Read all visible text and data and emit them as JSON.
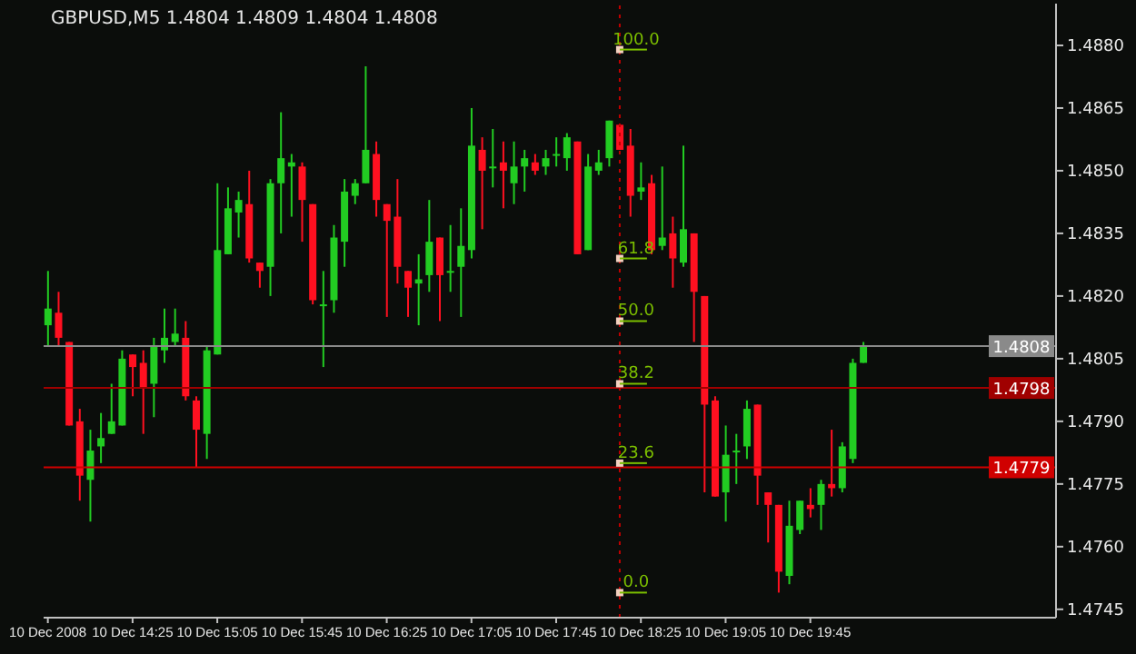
{
  "chart_data": {
    "type": "candlestick",
    "title": "GBPUSD,M5 1.4804 1.4809 1.4804 1.4808",
    "x": [
      "2008-12-10T13:45",
      "2008-12-10T13:50",
      "2008-12-10T13:55",
      "2008-12-10T14:00",
      "2008-12-10T14:05",
      "2008-12-10T14:10",
      "2008-12-10T14:15",
      "2008-12-10T14:20",
      "2008-12-10T14:25",
      "2008-12-10T14:30",
      "2008-12-10T14:35",
      "2008-12-10T14:40",
      "2008-12-10T14:45",
      "2008-12-10T14:50",
      "2008-12-10T14:55",
      "2008-12-10T15:00",
      "2008-12-10T15:05",
      "2008-12-10T15:10",
      "2008-12-10T15:15",
      "2008-12-10T15:20",
      "2008-12-10T15:25",
      "2008-12-10T15:30",
      "2008-12-10T15:35",
      "2008-12-10T15:40",
      "2008-12-10T15:45",
      "2008-12-10T15:50",
      "2008-12-10T15:55",
      "2008-12-10T16:00",
      "2008-12-10T16:05",
      "2008-12-10T16:10",
      "2008-12-10T16:15",
      "2008-12-10T16:20",
      "2008-12-10T16:25",
      "2008-12-10T16:30",
      "2008-12-10T16:35",
      "2008-12-10T16:40",
      "2008-12-10T16:45",
      "2008-12-10T16:50",
      "2008-12-10T16:55",
      "2008-12-10T17:00",
      "2008-12-10T17:05",
      "2008-12-10T17:10",
      "2008-12-10T17:15",
      "2008-12-10T17:20",
      "2008-12-10T17:25",
      "2008-12-10T17:30",
      "2008-12-10T17:35",
      "2008-12-10T17:40",
      "2008-12-10T17:45",
      "2008-12-10T17:50",
      "2008-12-10T17:55",
      "2008-12-10T18:00",
      "2008-12-10T18:05",
      "2008-12-10T18:10",
      "2008-12-10T18:15",
      "2008-12-10T18:20",
      "2008-12-10T18:25",
      "2008-12-10T18:30",
      "2008-12-10T18:35",
      "2008-12-10T18:40",
      "2008-12-10T18:45",
      "2008-12-10T18:50",
      "2008-12-10T18:55",
      "2008-12-10T19:00",
      "2008-12-10T19:05",
      "2008-12-10T19:10",
      "2008-12-10T19:15",
      "2008-12-10T19:20",
      "2008-12-10T19:25",
      "2008-12-10T19:30",
      "2008-12-10T19:35",
      "2008-12-10T19:40",
      "2008-12-10T19:45",
      "2008-12-10T19:50",
      "2008-12-10T19:55",
      "2008-12-10T20:00",
      "2008-12-10T20:05",
      "2008-12-10T20:10"
    ],
    "xlim": [
      "2008-12-10T13:43",
      "2008-12-10T21:41"
    ],
    "xticks": [
      {
        "value": "2008-12-10T13:45",
        "label": "10 Dec 2008"
      },
      {
        "value": "2008-12-10T14:25",
        "label": "10 Dec 14:25"
      },
      {
        "value": "2008-12-10T15:05",
        "label": "10 Dec 15:05"
      },
      {
        "value": "2008-12-10T15:45",
        "label": "10 Dec 15:45"
      },
      {
        "value": "2008-12-10T16:25",
        "label": "10 Dec 16:25"
      },
      {
        "value": "2008-12-10T17:05",
        "label": "10 Dec 17:05"
      },
      {
        "value": "2008-12-10T17:45",
        "label": "10 Dec 17:45"
      },
      {
        "value": "2008-12-10T18:25",
        "label": "10 Dec 18:25"
      },
      {
        "value": "2008-12-10T19:05",
        "label": "10 Dec 19:05"
      },
      {
        "value": "2008-12-10T19:45",
        "label": "10 Dec 19:45"
      }
    ],
    "ohlc": [
      [
        1.4813,
        1.4826,
        1.4808,
        1.4817
      ],
      [
        1.4816,
        1.4821,
        1.4808,
        1.481
      ],
      [
        1.4809,
        1.4809,
        1.4789,
        1.4789
      ],
      [
        1.479,
        1.4793,
        1.4771,
        1.4777
      ],
      [
        1.4776,
        1.4788,
        1.4766,
        1.4783
      ],
      [
        1.4784,
        1.4792,
        1.478,
        1.4786
      ],
      [
        1.4787,
        1.4799,
        1.4787,
        1.479
      ],
      [
        1.4789,
        1.4807,
        1.4789,
        1.4805
      ],
      [
        1.4806,
        1.4806,
        1.4796,
        1.4803
      ],
      [
        1.4804,
        1.4807,
        1.4787,
        1.4798
      ],
      [
        1.4799,
        1.481,
        1.4791,
        1.4808
      ],
      [
        1.4807,
        1.4817,
        1.4804,
        1.481
      ],
      [
        1.4809,
        1.4817,
        1.4808,
        1.4811
      ],
      [
        1.481,
        1.4814,
        1.4795,
        1.4796
      ],
      [
        1.4795,
        1.4796,
        1.4779,
        1.4788
      ],
      [
        1.4787,
        1.4808,
        1.4781,
        1.4807
      ],
      [
        1.4806,
        1.4847,
        1.4806,
        1.4831
      ],
      [
        1.483,
        1.4846,
        1.483,
        1.4841
      ],
      [
        1.484,
        1.4845,
        1.4834,
        1.4843
      ],
      [
        1.4842,
        1.485,
        1.4828,
        1.4829
      ],
      [
        1.4828,
        1.4828,
        1.4822,
        1.4826
      ],
      [
        1.4827,
        1.4848,
        1.482,
        1.4847
      ],
      [
        1.4847,
        1.4864,
        1.4835,
        1.4853
      ],
      [
        1.4851,
        1.4854,
        1.4839,
        1.4852
      ],
      [
        1.4851,
        1.4852,
        1.4833,
        1.4843
      ],
      [
        1.4842,
        1.4842,
        1.4818,
        1.4819
      ],
      [
        1.4818,
        1.4826,
        1.4803,
        1.4818
      ],
      [
        1.4819,
        1.4837,
        1.4816,
        1.4834
      ],
      [
        1.4833,
        1.4848,
        1.4827,
        1.4845
      ],
      [
        1.4844,
        1.4848,
        1.4842,
        1.4847
      ],
      [
        1.4847,
        1.4875,
        1.4847,
        1.4855
      ],
      [
        1.4854,
        1.4857,
        1.4839,
        1.4843
      ],
      [
        1.4842,
        1.4842,
        1.4815,
        1.4838
      ],
      [
        1.4839,
        1.4848,
        1.4823,
        1.4827
      ],
      [
        1.4826,
        1.4826,
        1.4815,
        1.4822
      ],
      [
        1.4823,
        1.483,
        1.4813,
        1.4824
      ],
      [
        1.4825,
        1.4843,
        1.4821,
        1.4833
      ],
      [
        1.4834,
        1.4834,
        1.4814,
        1.4825
      ],
      [
        1.4826,
        1.4837,
        1.4821,
        1.4826
      ],
      [
        1.4827,
        1.4841,
        1.4815,
        1.4832
      ],
      [
        1.4831,
        1.4865,
        1.4829,
        1.4856
      ],
      [
        1.4855,
        1.4858,
        1.4836,
        1.485
      ],
      [
        1.4851,
        1.486,
        1.4846,
        1.4851
      ],
      [
        1.4852,
        1.4857,
        1.4841,
        1.485
      ],
      [
        1.4847,
        1.4857,
        1.4842,
        1.4851
      ],
      [
        1.4851,
        1.4855,
        1.4845,
        1.4853
      ],
      [
        1.4852,
        1.4854,
        1.4849,
        1.485
      ],
      [
        1.4851,
        1.4855,
        1.4849,
        1.4853
      ],
      [
        1.4854,
        1.4858,
        1.4851,
        1.4854
      ],
      [
        1.4853,
        1.4859,
        1.485,
        1.4858
      ],
      [
        1.4857,
        1.4857,
        1.483,
        1.483
      ],
      [
        1.4831,
        1.4854,
        1.4831,
        1.4851
      ],
      [
        1.485,
        1.4855,
        1.4849,
        1.4852
      ],
      [
        1.4853,
        1.4862,
        1.4851,
        1.4862
      ],
      [
        1.4861,
        1.4861,
        1.4855,
        1.4855
      ],
      [
        1.4856,
        1.486,
        1.4839,
        1.4844
      ],
      [
        1.4845,
        1.4852,
        1.4843,
        1.4846
      ],
      [
        1.4847,
        1.4849,
        1.483,
        1.4831
      ],
      [
        1.4832,
        1.4851,
        1.4831,
        1.4834
      ],
      [
        1.4835,
        1.4839,
        1.4822,
        1.4829
      ],
      [
        1.4828,
        1.4856,
        1.4827,
        1.4836
      ],
      [
        1.4835,
        1.4835,
        1.4809,
        1.4821
      ],
      [
        1.482,
        1.482,
        1.4773,
        1.4794
      ],
      [
        1.4795,
        1.4796,
        1.4772,
        1.4772
      ],
      [
        1.4773,
        1.4789,
        1.4766,
        1.4782
      ],
      [
        1.4783,
        1.4787,
        1.4775,
        1.4783
      ],
      [
        1.4784,
        1.4795,
        1.4781,
        1.4793
      ],
      [
        1.4794,
        1.4794,
        1.477,
        1.4777
      ],
      [
        1.4773,
        1.4773,
        1.4761,
        1.477
      ],
      [
        1.477,
        1.477,
        1.4749,
        1.4754
      ],
      [
        1.4753,
        1.4771,
        1.4751,
        1.4765
      ],
      [
        1.4764,
        1.4771,
        1.4763,
        1.4771
      ],
      [
        1.477,
        1.4774,
        1.4767,
        1.4769
      ],
      [
        1.477,
        1.4776,
        1.4764,
        1.4775
      ],
      [
        1.4775,
        1.4788,
        1.4772,
        1.4774
      ],
      [
        1.4774,
        1.4785,
        1.4773,
        1.4784
      ],
      [
        1.4781,
        1.4805,
        1.478,
        1.4804
      ],
      [
        1.4804,
        1.4809,
        1.4804,
        1.4808
      ]
    ],
    "colors": [
      "#22cc22",
      "#ff1020",
      "#ff1020",
      "#ff1020",
      "#22cc22",
      "#22cc22",
      "#22cc22",
      "#22cc22",
      "#ff1020",
      "#ff1020",
      "#22cc22",
      "#22cc22",
      "#22cc22",
      "#ff1020",
      "#ff1020",
      "#22cc22",
      "#22cc22",
      "#22cc22",
      "#22cc22",
      "#ff1020",
      "#ff1020",
      "#22cc22",
      "#22cc22",
      "#22cc22",
      "#ff1020",
      "#ff1020",
      "#22cc22",
      "#22cc22",
      "#22cc22",
      "#22cc22",
      "#22cc22",
      "#ff1020",
      "#ff1020",
      "#ff1020",
      "#ff1020",
      "#22cc22",
      "#22cc22",
      "#ff1020",
      "#22cc22",
      "#22cc22",
      "#22cc22",
      "#ff1020",
      "#22cc22",
      "#ff1020",
      "#22cc22",
      "#22cc22",
      "#ff1020",
      "#22cc22",
      "#22cc22",
      "#22cc22",
      "#ff1020",
      "#22cc22",
      "#22cc22",
      "#22cc22",
      "#ff1020",
      "#ff1020",
      "#22cc22",
      "#ff1020",
      "#22cc22",
      "#ff1020",
      "#22cc22",
      "#ff1020",
      "#ff1020",
      "#ff1020",
      "#22cc22",
      "#22cc22",
      "#22cc22",
      "#ff1020",
      "#ff1020",
      "#ff1020",
      "#22cc22",
      "#22cc22",
      "#ff1020",
      "#22cc22",
      "#ff1020",
      "#22cc22",
      "#22cc22",
      "#22cc22"
    ],
    "ylim": [
      1.4743,
      1.489
    ],
    "yticks": [
      {
        "value": 1.4745,
        "label": "1.4745"
      },
      {
        "value": 1.476,
        "label": "1.4760"
      },
      {
        "value": 1.4775,
        "label": "1.4775"
      },
      {
        "value": 1.479,
        "label": "1.4790"
      },
      {
        "value": 1.4805,
        "label": "1.4805"
      },
      {
        "value": 1.482,
        "label": "1.4820"
      },
      {
        "value": 1.4835,
        "label": "1.4835"
      },
      {
        "value": 1.485,
        "label": "1.4850"
      },
      {
        "value": 1.4865,
        "label": "1.4865"
      },
      {
        "value": 1.488,
        "label": "1.4880"
      }
    ],
    "ref_lines": [
      {
        "axis": "y",
        "value": 1.4808,
        "label": "1.4808",
        "color": "#8a8a8a",
        "line_style": "solid"
      },
      {
        "axis": "y",
        "value": 1.4798,
        "label": "1.4798",
        "color": "#a00000",
        "line_style": "solid"
      },
      {
        "axis": "y",
        "value": 1.4779,
        "label": "1.4779",
        "color": "#d00000",
        "line_style": "solid"
      },
      {
        "axis": "x",
        "value": "2008-12-10T18:15",
        "color": "#c00000",
        "line_style": "dotted"
      }
    ],
    "annotations": [
      {
        "text": "100.0",
        "x": "2008-12-10T18:15",
        "y": 1.4879
      },
      {
        "text": "61.8",
        "x": "2008-12-10T18:15",
        "y": 1.4829
      },
      {
        "text": "50.0",
        "x": "2008-12-10T18:15",
        "y": 1.4814
      },
      {
        "text": "38.2",
        "x": "2008-12-10T18:15",
        "y": 1.4799
      },
      {
        "text": "23.6",
        "x": "2008-12-10T18:15",
        "y": 1.478
      },
      {
        "text": "0.0",
        "x": "2008-12-10T18:15",
        "y": 1.4749
      }
    ]
  }
}
